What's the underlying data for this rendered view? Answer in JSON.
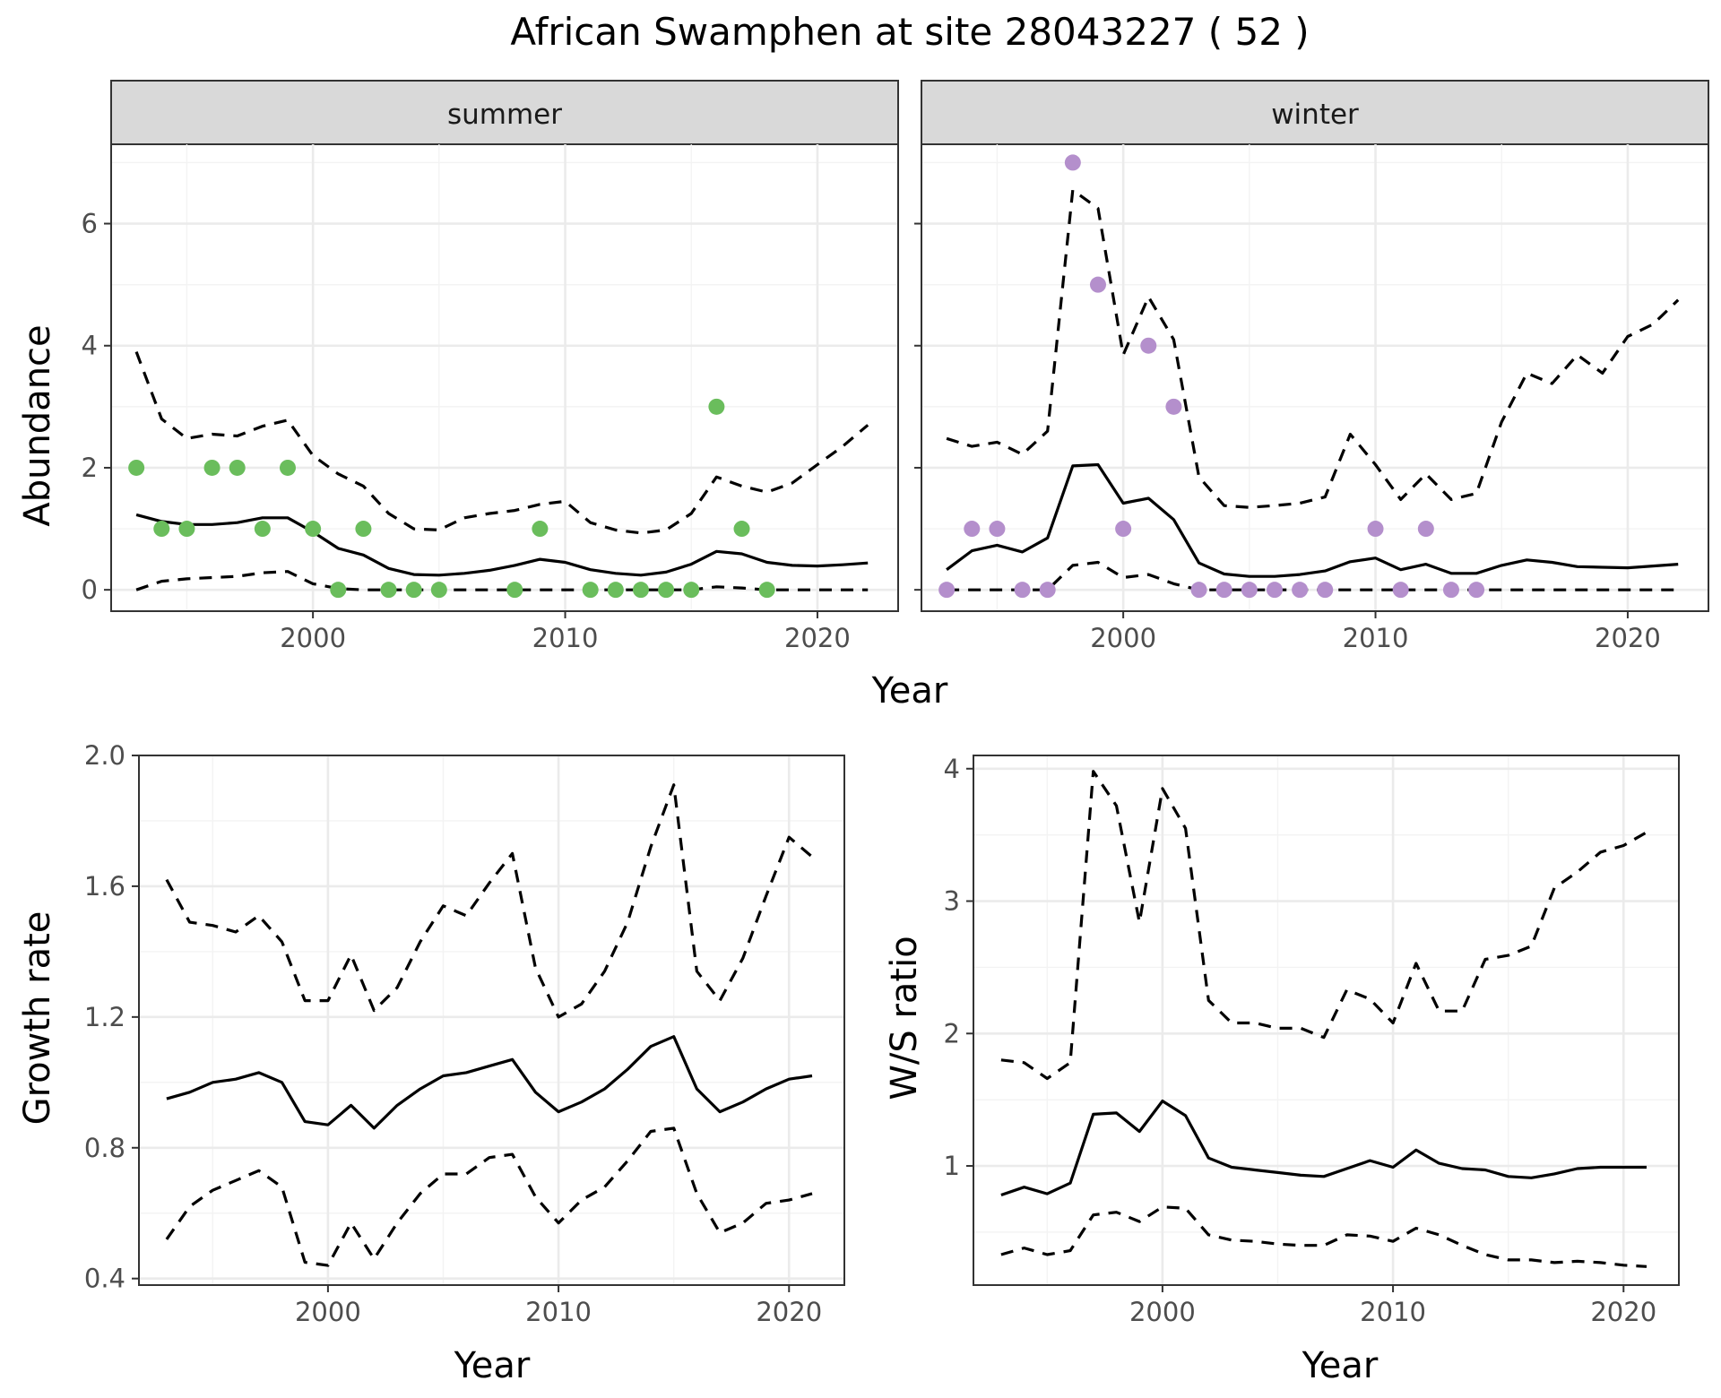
{
  "figure": {
    "title": "African Swamphen at site 28043227 ( 52 )"
  },
  "chart_data": [
    {
      "type": "line",
      "panel": "summer",
      "strip_label": "summer",
      "xlabel": "Year",
      "ylabel": "Abundance",
      "xlim": [
        1992,
        2023.2
      ],
      "ylim": [
        -0.35,
        7.3
      ],
      "x_ticks": [
        2000,
        2010,
        2020
      ],
      "y_ticks": [
        0,
        2,
        4,
        6
      ],
      "grid": true,
      "point_color": "#6abd5c",
      "years": [
        1993,
        1994,
        1995,
        1996,
        1997,
        1998,
        1999,
        2000,
        2001,
        2002,
        2003,
        2004,
        2005,
        2006,
        2007,
        2008,
        2009,
        2010,
        2011,
        2012,
        2013,
        2014,
        2015,
        2016,
        2017,
        2018,
        2019,
        2020,
        2021,
        2022
      ],
      "mean": [
        1.23,
        1.12,
        1.07,
        1.07,
        1.1,
        1.18,
        1.18,
        0.95,
        0.68,
        0.57,
        0.35,
        0.25,
        0.24,
        0.27,
        0.32,
        0.4,
        0.5,
        0.45,
        0.33,
        0.27,
        0.24,
        0.29,
        0.42,
        0.63,
        0.59,
        0.45,
        0.4,
        0.39,
        0.41,
        0.44
      ],
      "upper": [
        3.9,
        2.8,
        2.48,
        2.55,
        2.52,
        2.68,
        2.78,
        2.2,
        1.9,
        1.7,
        1.25,
        1.0,
        0.98,
        1.18,
        1.25,
        1.3,
        1.4,
        1.45,
        1.1,
        0.98,
        0.93,
        0.98,
        1.25,
        1.85,
        1.7,
        1.6,
        1.75,
        2.05,
        2.35,
        2.7
      ],
      "lower": [
        0.0,
        0.14,
        0.18,
        0.2,
        0.22,
        0.28,
        0.3,
        0.1,
        0.02,
        0.0,
        0.0,
        0.0,
        0.0,
        0.0,
        0.0,
        0.0,
        0.0,
        0.0,
        0.0,
        0.0,
        0.0,
        0.0,
        0.0,
        0.05,
        0.03,
        0.0,
        0.0,
        0.0,
        0.0,
        0.0
      ],
      "points": [
        [
          1993,
          2
        ],
        [
          1994,
          1
        ],
        [
          1995,
          1
        ],
        [
          1996,
          2
        ],
        [
          1997,
          2
        ],
        [
          1998,
          1
        ],
        [
          1999,
          2
        ],
        [
          2000,
          1
        ],
        [
          2001,
          0
        ],
        [
          2002,
          1
        ],
        [
          2003,
          0
        ],
        [
          2004,
          0
        ],
        [
          2005,
          0
        ],
        [
          2008,
          0
        ],
        [
          2009,
          1
        ],
        [
          2011,
          0
        ],
        [
          2012,
          0
        ],
        [
          2013,
          0
        ],
        [
          2014,
          0
        ],
        [
          2015,
          0
        ],
        [
          2016,
          3
        ],
        [
          2017,
          1
        ],
        [
          2018,
          0
        ]
      ]
    },
    {
      "type": "line",
      "panel": "winter",
      "strip_label": "winter",
      "xlabel": "Year",
      "ylabel": "Abundance",
      "xlim": [
        1992,
        2023.2
      ],
      "ylim": [
        -0.35,
        7.3
      ],
      "x_ticks": [
        2000,
        2010,
        2020
      ],
      "y_ticks": [
        0,
        2,
        4,
        6
      ],
      "grid": true,
      "point_color": "#b48fcc",
      "years": [
        1993,
        1994,
        1995,
        1996,
        1997,
        1998,
        1999,
        2000,
        2001,
        2002,
        2003,
        2004,
        2005,
        2006,
        2007,
        2008,
        2009,
        2010,
        2011,
        2012,
        2013,
        2014,
        2015,
        2016,
        2017,
        2018,
        2019,
        2020,
        2021,
        2022
      ],
      "mean": [
        0.33,
        0.64,
        0.73,
        0.62,
        0.85,
        2.03,
        2.05,
        1.42,
        1.5,
        1.15,
        0.44,
        0.26,
        0.22,
        0.22,
        0.25,
        0.31,
        0.46,
        0.52,
        0.33,
        0.42,
        0.27,
        0.27,
        0.4,
        0.49,
        0.45,
        0.38,
        0.37,
        0.36,
        0.39,
        0.42
      ],
      "upper": [
        2.48,
        2.35,
        2.42,
        2.22,
        2.6,
        6.55,
        6.25,
        3.85,
        4.8,
        4.1,
        1.85,
        1.38,
        1.35,
        1.38,
        1.42,
        1.52,
        2.55,
        2.05,
        1.48,
        1.9,
        1.48,
        1.58,
        2.75,
        3.55,
        3.38,
        3.85,
        3.55,
        4.15,
        4.35,
        4.75
      ],
      "lower": [
        0.0,
        0.0,
        0.0,
        0.0,
        0.0,
        0.4,
        0.45,
        0.2,
        0.25,
        0.1,
        0.0,
        0.0,
        0.0,
        0.0,
        0.0,
        0.0,
        0.0,
        0.0,
        0.0,
        0.0,
        0.0,
        0.0,
        0.0,
        0.0,
        0.0,
        0.0,
        0.0,
        0.0,
        0.0,
        0.0
      ],
      "points": [
        [
          1993,
          0
        ],
        [
          1994,
          1
        ],
        [
          1995,
          1
        ],
        [
          1996,
          0
        ],
        [
          1997,
          0
        ],
        [
          1998,
          7
        ],
        [
          1999,
          5
        ],
        [
          2000,
          1
        ],
        [
          2001,
          4
        ],
        [
          2002,
          3
        ],
        [
          2003,
          0
        ],
        [
          2004,
          0
        ],
        [
          2005,
          0
        ],
        [
          2006,
          0
        ],
        [
          2007,
          0
        ],
        [
          2008,
          0
        ],
        [
          2010,
          1
        ],
        [
          2011,
          0
        ],
        [
          2012,
          1
        ],
        [
          2013,
          0
        ],
        [
          2014,
          0
        ]
      ]
    },
    {
      "type": "line",
      "panel": "growth",
      "xlabel": "Year",
      "ylabel": "Growth rate",
      "xlim": [
        1991.8,
        2022.4
      ],
      "ylim": [
        0.38,
        2.0
      ],
      "x_ticks": [
        2000,
        2010,
        2020
      ],
      "y_ticks": [
        0.4,
        0.8,
        1.2,
        1.6,
        2.0
      ],
      "y_tick_labels": [
        "0.4",
        "0.8",
        "1.2",
        "1.6",
        "2.0"
      ],
      "grid": true,
      "years": [
        1993,
        1994,
        1995,
        1996,
        1997,
        1998,
        1999,
        2000,
        2001,
        2002,
        2003,
        2004,
        2005,
        2006,
        2007,
        2008,
        2009,
        2010,
        2011,
        2012,
        2013,
        2014,
        2015,
        2016,
        2017,
        2018,
        2019,
        2020,
        2021
      ],
      "mean": [
        0.95,
        0.97,
        1.0,
        1.01,
        1.03,
        1.0,
        0.88,
        0.87,
        0.93,
        0.86,
        0.93,
        0.98,
        1.02,
        1.03,
        1.05,
        1.07,
        0.97,
        0.91,
        0.94,
        0.98,
        1.04,
        1.11,
        1.14,
        0.98,
        0.91,
        0.94,
        0.98,
        1.01,
        1.02
      ],
      "upper": [
        1.62,
        1.49,
        1.48,
        1.46,
        1.51,
        1.43,
        1.25,
        1.25,
        1.39,
        1.22,
        1.29,
        1.43,
        1.54,
        1.51,
        1.61,
        1.7,
        1.35,
        1.2,
        1.24,
        1.34,
        1.49,
        1.72,
        1.91,
        1.34,
        1.25,
        1.38,
        1.57,
        1.75,
        1.69
      ],
      "lower": [
        0.52,
        0.62,
        0.67,
        0.7,
        0.73,
        0.68,
        0.45,
        0.44,
        0.57,
        0.46,
        0.57,
        0.66,
        0.72,
        0.72,
        0.77,
        0.78,
        0.65,
        0.57,
        0.64,
        0.68,
        0.76,
        0.85,
        0.86,
        0.66,
        0.54,
        0.57,
        0.63,
        0.64,
        0.66
      ]
    },
    {
      "type": "line",
      "panel": "ratio",
      "xlabel": "Year",
      "ylabel": "W/S ratio",
      "xlim": [
        1991.8,
        2022.4
      ],
      "ylim": [
        0.1,
        4.1
      ],
      "x_ticks": [
        2000,
        2010,
        2020
      ],
      "y_ticks": [
        1,
        2,
        3,
        4
      ],
      "grid": true,
      "years": [
        1993,
        1994,
        1995,
        1996,
        1997,
        1998,
        1999,
        2000,
        2001,
        2002,
        2003,
        2004,
        2005,
        2006,
        2007,
        2008,
        2009,
        2010,
        2011,
        2012,
        2013,
        2014,
        2015,
        2016,
        2017,
        2018,
        2019,
        2020,
        2021
      ],
      "mean": [
        0.78,
        0.84,
        0.79,
        0.87,
        1.39,
        1.4,
        1.26,
        1.49,
        1.38,
        1.06,
        0.99,
        0.97,
        0.95,
        0.93,
        0.92,
        0.98,
        1.04,
        0.99,
        1.12,
        1.02,
        0.98,
        0.97,
        0.92,
        0.91,
        0.94,
        0.98,
        0.99,
        0.99,
        0.99
      ],
      "upper": [
        1.8,
        1.78,
        1.66,
        1.78,
        3.98,
        3.72,
        2.84,
        3.85,
        3.55,
        2.25,
        2.08,
        2.08,
        2.04,
        2.04,
        1.97,
        2.33,
        2.26,
        2.08,
        2.53,
        2.17,
        2.17,
        2.56,
        2.59,
        2.66,
        3.1,
        3.22,
        3.37,
        3.42,
        3.52
      ],
      "lower": [
        0.33,
        0.38,
        0.33,
        0.36,
        0.63,
        0.65,
        0.58,
        0.69,
        0.68,
        0.48,
        0.44,
        0.43,
        0.41,
        0.4,
        0.4,
        0.48,
        0.47,
        0.43,
        0.53,
        0.48,
        0.4,
        0.33,
        0.29,
        0.29,
        0.27,
        0.28,
        0.27,
        0.25,
        0.24
      ]
    }
  ]
}
